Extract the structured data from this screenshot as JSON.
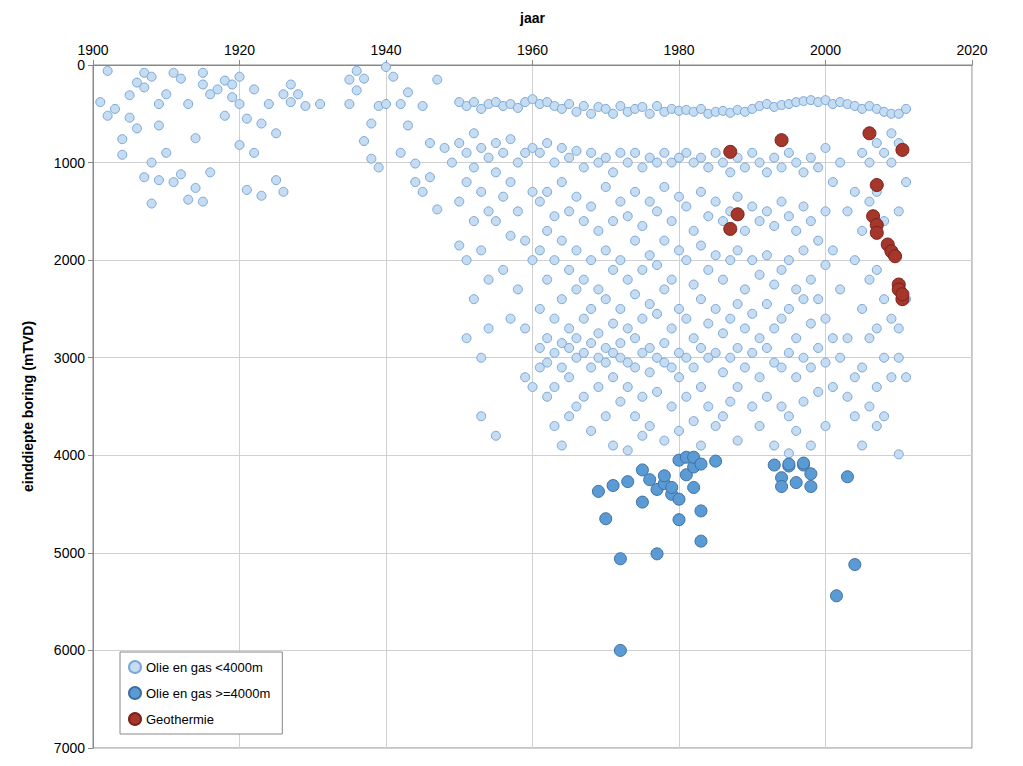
{
  "chart_data": {
    "type": "scatter",
    "x_label": "jaar",
    "y_label": "einddiepte boring (mTVD)",
    "xlim": [
      1900,
      2020
    ],
    "xticks": [
      1900,
      1920,
      1940,
      1960,
      1980,
      2000,
      2020
    ],
    "ylim": [
      0,
      7000
    ],
    "yticks": [
      0,
      1000,
      2000,
      3000,
      4000,
      5000,
      6000,
      7000
    ],
    "grid": true,
    "legend": "lower left",
    "marker": "circle",
    "series": [
      {
        "name": "Olie en gas <4000m",
        "color": "#c6dcf1",
        "x": [
          1901,
          1902,
          1902,
          1903,
          1904,
          1904,
          1905,
          1905,
          1906,
          1906,
          1907,
          1907,
          1907,
          1908,
          1908,
          1908,
          1909,
          1909,
          1909,
          1910,
          1910,
          1911,
          1911,
          1912,
          1912,
          1913,
          1913,
          1914,
          1914,
          1915,
          1915,
          1915,
          1916,
          1916,
          1917,
          1918,
          1918,
          1919,
          1919,
          1920,
          1920,
          1920,
          1921,
          1921,
          1922,
          1922,
          1923,
          1923,
          1924,
          1925,
          1925,
          1926,
          1926,
          1927,
          1927,
          1928,
          1929,
          1931,
          1935,
          1935,
          1936,
          1936,
          1937,
          1937,
          1938,
          1938,
          1939,
          1939,
          1940,
          1940,
          1941,
          1942,
          1942,
          1943,
          1943,
          1944,
          1944,
          1945,
          1945,
          1946,
          1946,
          1947,
          1947,
          1948,
          1949,
          1950,
          1950,
          1950,
          1950,
          1951,
          1951,
          1951,
          1951,
          1951,
          1952,
          1952,
          1952,
          1952,
          1952,
          1953,
          1953,
          1953,
          1953,
          1953,
          1953,
          1954,
          1954,
          1954,
          1954,
          1954,
          1955,
          1955,
          1955,
          1955,
          1955,
          1956,
          1956,
          1956,
          1956,
          1957,
          1957,
          1957,
          1957,
          1957,
          1958,
          1958,
          1958,
          1958,
          1959,
          1959,
          1959,
          1959,
          1959,
          1960,
          1960,
          1960,
          1960,
          1960,
          1961,
          1961,
          1961,
          1961,
          1961,
          1961,
          1961,
          1962,
          1962,
          1962,
          1962,
          1962,
          1962,
          1962,
          1962,
          1963,
          1963,
          1963,
          1963,
          1963,
          1963,
          1963,
          1963,
          1964,
          1964,
          1964,
          1964,
          1964,
          1964,
          1964,
          1964,
          1965,
          1965,
          1965,
          1965,
          1965,
          1965,
          1965,
          1965,
          1966,
          1966,
          1966,
          1966,
          1966,
          1966,
          1966,
          1966,
          1967,
          1967,
          1967,
          1967,
          1967,
          1967,
          1967,
          1968,
          1968,
          1968,
          1968,
          1968,
          1968,
          1968,
          1968,
          1969,
          1969,
          1969,
          1969,
          1969,
          1969,
          1969,
          1970,
          1970,
          1970,
          1970,
          1970,
          1970,
          1970,
          1970,
          1971,
          1971,
          1971,
          1971,
          1971,
          1971,
          1971,
          1971,
          1972,
          1972,
          1972,
          1972,
          1972,
          1972,
          1972,
          1972,
          1973,
          1973,
          1973,
          1973,
          1973,
          1973,
          1973,
          1973,
          1974,
          1974,
          1974,
          1974,
          1974,
          1974,
          1974,
          1974,
          1975,
          1975,
          1975,
          1975,
          1975,
          1975,
          1975,
          1975,
          1976,
          1976,
          1976,
          1976,
          1976,
          1976,
          1976,
          1976,
          1977,
          1977,
          1977,
          1977,
          1977,
          1977,
          1977,
          1978,
          1978,
          1978,
          1978,
          1978,
          1978,
          1978,
          1978,
          1979,
          1979,
          1979,
          1979,
          1979,
          1979,
          1979,
          1980,
          1980,
          1980,
          1980,
          1980,
          1980,
          1980,
          1980,
          1981,
          1981,
          1981,
          1981,
          1981,
          1981,
          1981,
          1982,
          1982,
          1982,
          1982,
          1982,
          1982,
          1982,
          1983,
          1983,
          1983,
          1983,
          1983,
          1983,
          1983,
          1983,
          1984,
          1984,
          1984,
          1984,
          1984,
          1984,
          1984,
          1985,
          1985,
          1985,
          1985,
          1985,
          1985,
          1985,
          1986,
          1986,
          1986,
          1986,
          1986,
          1986,
          1986,
          1987,
          1987,
          1987,
          1987,
          1987,
          1987,
          1987,
          1988,
          1988,
          1988,
          1988,
          1988,
          1988,
          1988,
          1988,
          1989,
          1989,
          1989,
          1989,
          1989,
          1989,
          1990,
          1990,
          1990,
          1990,
          1990,
          1990,
          1990,
          1991,
          1991,
          1991,
          1991,
          1991,
          1991,
          1991,
          1992,
          1992,
          1992,
          1992,
          1992,
          1992,
          1992,
          1993,
          1993,
          1993,
          1993,
          1993,
          1993,
          1993,
          1994,
          1994,
          1994,
          1994,
          1994,
          1994,
          1994,
          1995,
          1995,
          1995,
          1995,
          1995,
          1995,
          1995,
          1995,
          1996,
          1996,
          1996,
          1996,
          1996,
          1996,
          1996,
          1997,
          1997,
          1997,
          1997,
          1997,
          1997,
          1997,
          1998,
          1998,
          1998,
          1998,
          1998,
          1998,
          1998,
          1999,
          1999,
          1999,
          1999,
          1999,
          1999,
          2000,
          2000,
          2000,
          2000,
          2000,
          2000,
          2000,
          2001,
          2001,
          2001,
          2001,
          2001,
          2002,
          2002,
          2002,
          2002,
          2003,
          2003,
          2003,
          2003,
          2004,
          2004,
          2004,
          2004,
          2004,
          2005,
          2005,
          2005,
          2005,
          2005,
          2005,
          2006,
          2006,
          2006,
          2006,
          2006,
          2006,
          2007,
          2007,
          2007,
          2007,
          2007,
          2007,
          2007,
          2008,
          2008,
          2008,
          2008,
          2008,
          2008,
          2009,
          2009,
          2009,
          2009,
          2009,
          2009,
          2010,
          2010,
          2010,
          2010,
          2010,
          2010,
          2010,
          2011,
          2011,
          2011,
          2011
        ],
        "values": [
          380,
          60,
          520,
          450,
          760,
          920,
          540,
          310,
          650,
          180,
          80,
          230,
          1150,
          1000,
          1420,
          120,
          400,
          620,
          1180,
          900,
          300,
          80,
          1200,
          140,
          1120,
          400,
          1380,
          750,
          1260,
          80,
          1400,
          200,
          1100,
          300,
          250,
          520,
          160,
          200,
          330,
          120,
          400,
          820,
          550,
          1280,
          900,
          250,
          1340,
          600,
          400,
          1180,
          700,
          1300,
          300,
          200,
          380,
          300,
          420,
          400,
          150,
          400,
          60,
          260,
          140,
          780,
          600,
          960,
          1050,
          420,
          20,
          400,
          120,
          400,
          900,
          620,
          280,
          1200,
          1010,
          420,
          1300,
          800,
          1150,
          1480,
          150,
          850,
          1000,
          380,
          800,
          1400,
          1850,
          420,
          900,
          1200,
          2000,
          2800,
          380,
          700,
          1050,
          1600,
          2400,
          450,
          850,
          1300,
          1900,
          3000,
          3600,
          400,
          950,
          1500,
          2200,
          2700,
          380,
          800,
          1100,
          1600,
          3800,
          420,
          900,
          1350,
          2100,
          400,
          760,
          1200,
          1750,
          2600,
          440,
          1000,
          1500,
          2300,
          380,
          900,
          1800,
          2700,
          3200,
          350,
          850,
          1300,
          2000,
          3300,
          400,
          900,
          1400,
          1900,
          2500,
          2900,
          3100,
          380,
          800,
          1300,
          1700,
          2200,
          2800,
          3050,
          3400,
          420,
          1000,
          1550,
          2000,
          2600,
          2950,
          3300,
          3700,
          450,
          850,
          1200,
          1800,
          2400,
          2850,
          3100,
          3900,
          400,
          950,
          1500,
          2100,
          2700,
          2900,
          3200,
          3600,
          480,
          880,
          1350,
          1900,
          2300,
          2800,
          3000,
          3500,
          420,
          1050,
          1600,
          2200,
          2600,
          2950,
          3400,
          500,
          900,
          1450,
          2000,
          2500,
          2850,
          3100,
          3750,
          430,
          1000,
          1700,
          2300,
          2750,
          3000,
          3300,
          450,
          950,
          1250,
          1900,
          2400,
          2900,
          3050,
          3600,
          500,
          1100,
          1600,
          2100,
          2650,
          2950,
          3200,
          3900,
          420,
          900,
          1400,
          2000,
          2500,
          2850,
          3000,
          3450,
          480,
          1000,
          1550,
          2200,
          2700,
          3050,
          3300,
          3950,
          450,
          900,
          1300,
          1800,
          2350,
          2800,
          3100,
          3600,
          430,
          1050,
          1650,
          2100,
          2600,
          2950,
          3400,
          3800,
          500,
          950,
          1400,
          1950,
          2450,
          2900,
          3150,
          3700,
          420,
          1000,
          1500,
          2050,
          2550,
          3000,
          3350,
          480,
          900,
          1250,
          1800,
          2300,
          2850,
          3050,
          3850,
          450,
          1000,
          1600,
          2200,
          2700,
          3100,
          3500,
          470,
          950,
          1350,
          1900,
          2500,
          2950,
          3200,
          3750,
          460,
          900,
          1450,
          2000,
          2600,
          3000,
          3400,
          480,
          1000,
          1700,
          2250,
          2800,
          3100,
          3650,
          450,
          950,
          1300,
          1850,
          2400,
          2900,
          3300,
          3900,
          500,
          1050,
          1550,
          2100,
          2650,
          3000,
          3500,
          480,
          900,
          1400,
          1950,
          2500,
          2950,
          3700,
          470,
          1000,
          1600,
          2200,
          2750,
          3150,
          3600,
          490,
          1100,
          1500,
          2000,
          2600,
          3000,
          3450,
          460,
          950,
          1350,
          1900,
          2450,
          2900,
          3300,
          3850,
          480,
          1050,
          1700,
          2300,
          2700,
          3100,
          450,
          900,
          1450,
          2000,
          2550,
          2950,
          3500,
          420,
          1000,
          1600,
          2150,
          2800,
          3200,
          3700,
          400,
          1100,
          1500,
          1950,
          2450,
          2900,
          3400,
          430,
          950,
          1650,
          2250,
          2700,
          3050,
          3900,
          410,
          1050,
          1400,
          2100,
          2600,
          3100,
          3500,
          400,
          900,
          1550,
          2000,
          2500,
          2950,
          3600,
          3980,
          380,
          1000,
          1700,
          2300,
          2800,
          3200,
          3750,
          370,
          1100,
          1450,
          1900,
          2400,
          3000,
          3450,
          360,
          950,
          1600,
          2200,
          2650,
          3100,
          3900,
          380,
          1050,
          1800,
          2400,
          2900,
          3350,
          360,
          850,
          1500,
          2050,
          2600,
          3050,
          3700,
          400,
          1200,
          1900,
          2800,
          3300,
          380,
          1000,
          2300,
          3000,
          400,
          1500,
          2800,
          3400,
          420,
          1300,
          2000,
          3200,
          3600,
          450,
          900,
          1700,
          2500,
          3100,
          3900,
          420,
          1000,
          1400,
          2200,
          2800,
          3500,
          450,
          800,
          1300,
          2100,
          2700,
          3300,
          3700,
          480,
          900,
          1600,
          2400,
          3000,
          3600,
          500,
          700,
          1000,
          1900,
          2600,
          3200,
          500,
          800,
          1500,
          2300,
          2700,
          3000,
          3990,
          450,
          1200,
          2400,
          3200
        ]
      },
      {
        "name": "Olie en gas >=4000m",
        "color": "#5b9bd5",
        "x": [
          1969,
          1970,
          1971,
          1972,
          1972,
          1973,
          1975,
          1975,
          1976,
          1977,
          1977,
          1978,
          1978,
          1979,
          1979,
          1980,
          1980,
          1980,
          1981,
          1981,
          1982,
          1982,
          1982,
          1983,
          1983,
          1983,
          1985,
          1993,
          1994,
          1994,
          1995,
          1995,
          1996,
          1997,
          1997,
          1998,
          1998,
          2001.5,
          2003,
          2004
        ],
        "values": [
          4370,
          4650,
          4310,
          5060,
          6000,
          4270,
          4480,
          4150,
          4250,
          5010,
          4350,
          4290,
          4210,
          4400,
          4330,
          4050,
          4450,
          4660,
          4020,
          4200,
          4330,
          4120,
          4020,
          4570,
          4880,
          4090,
          4060,
          4100,
          4230,
          4320,
          4110,
          4090,
          4280,
          4100,
          4080,
          4320,
          4190,
          5440,
          4220,
          5120
        ]
      },
      {
        "name": "Geothermie",
        "color": "#a5362b",
        "x": [
          1987,
          1988,
          1987,
          1994,
          2006,
          2007,
          2006.5,
          2007,
          2007,
          2008.5,
          2009,
          2009.5,
          2010,
          2010,
          2010.5,
          2010.5,
          2010.5
        ],
        "values": [
          890,
          1530,
          1680,
          770,
          700,
          1230,
          1550,
          1640,
          1720,
          1840,
          1910,
          1960,
          2250,
          2300,
          2400,
          2350,
          870
        ]
      }
    ]
  }
}
